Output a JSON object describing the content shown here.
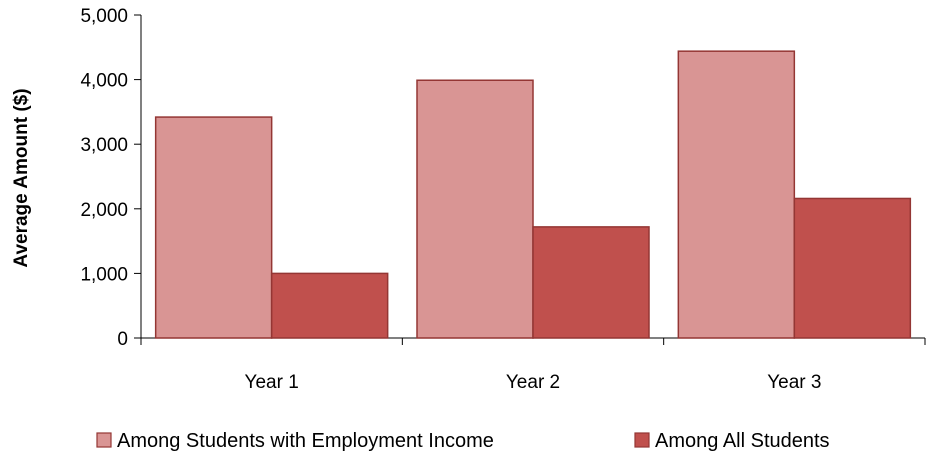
{
  "chart_data": {
    "type": "bar",
    "categories": [
      "Year 1",
      "Year 2",
      "Year 3"
    ],
    "series": [
      {
        "name": "Among Students with Employment Income",
        "values": [
          3420,
          3990,
          4440
        ],
        "color": "#D99594",
        "stroke": "#943634"
      },
      {
        "name": "Among All Students",
        "values": [
          1000,
          1720,
          2160
        ],
        "color": "#C0504D",
        "stroke": "#943634"
      }
    ],
    "title": "",
    "xlabel": "",
    "ylabel": "Average Amount ($)",
    "ylim": [
      0,
      5000
    ],
    "yticks": [
      0,
      1000,
      2000,
      3000,
      4000,
      5000
    ],
    "ytick_labels": [
      "0",
      "1,000",
      "2,000",
      "3,000",
      "4,000",
      "5,000"
    ],
    "grid": false,
    "legend_position": "bottom"
  }
}
